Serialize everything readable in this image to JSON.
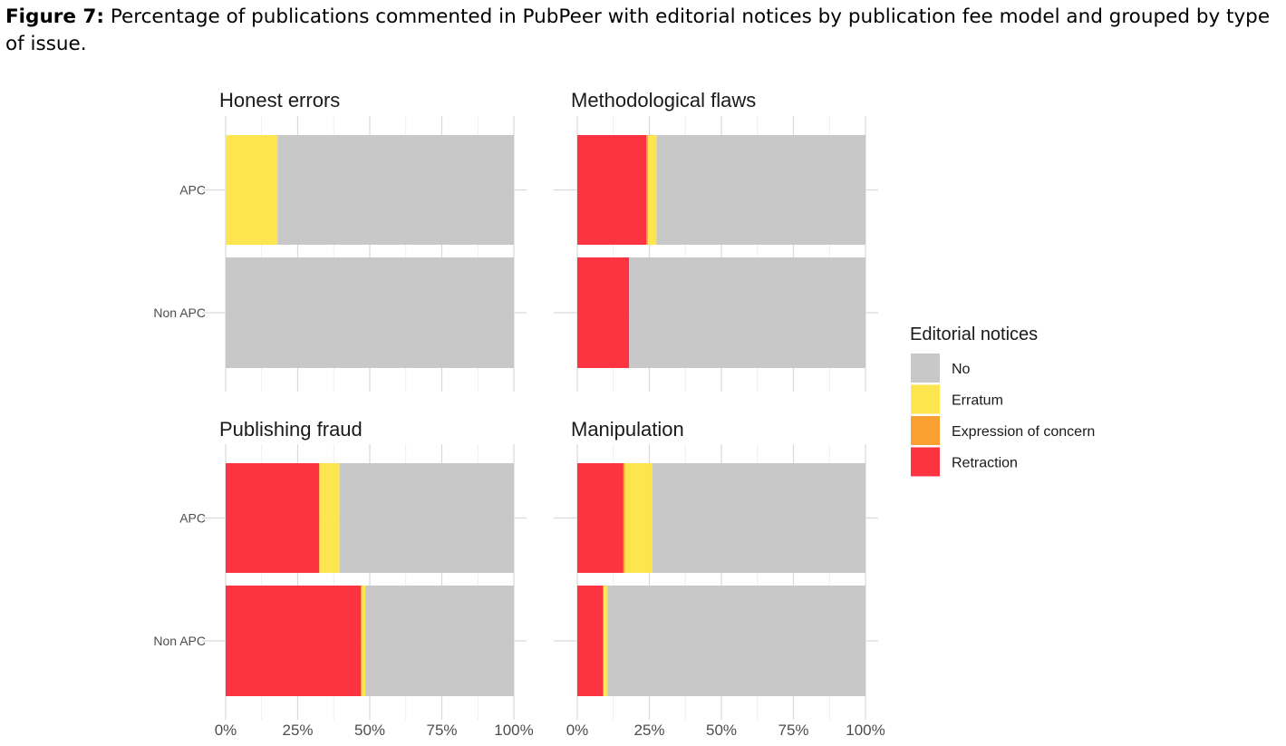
{
  "figure": {
    "label": "Figure 7:",
    "caption": " Percentage of publications commented in PubPeer with editorial notices by publication fee model and grouped by type of issue."
  },
  "chart_data": {
    "type": "bar",
    "orientation": "horizontal",
    "stacked": true,
    "categories": [
      "APC",
      "Non APC"
    ],
    "xlim": [
      0,
      100
    ],
    "x_ticks": [
      "0%",
      "25%",
      "50%",
      "75%",
      "100%"
    ],
    "grid": true,
    "legend": {
      "title": "Editorial notices",
      "placement": "right",
      "entries": [
        "No",
        "Erratum",
        "Expression of concern",
        "Retraction"
      ]
    },
    "colors": {
      "No": "#c8c8c8",
      "Erratum": "#fde54f",
      "Expression of concern": "#f9a030",
      "Retraction": "#fc3340"
    },
    "panels": [
      {
        "title": "Honest errors",
        "series": [
          {
            "name": "Retraction",
            "values": [
              0,
              0
            ]
          },
          {
            "name": "Expression of concern",
            "values": [
              0,
              0
            ]
          },
          {
            "name": "Erratum",
            "values": [
              18,
              0
            ]
          },
          {
            "name": "No",
            "values": [
              82,
              100
            ]
          }
        ]
      },
      {
        "title": "Methodological flaws",
        "series": [
          {
            "name": "Retraction",
            "values": [
              24,
              18
            ]
          },
          {
            "name": "Expression of concern",
            "values": [
              0.5,
              0
            ]
          },
          {
            "name": "Erratum",
            "values": [
              3,
              0
            ]
          },
          {
            "name": "No",
            "values": [
              72.5,
              82
            ]
          }
        ]
      },
      {
        "title": "Publishing fraud",
        "series": [
          {
            "name": "Retraction",
            "values": [
              32.5,
              47
            ]
          },
          {
            "name": "Expression of concern",
            "values": [
              0,
              0
            ]
          },
          {
            "name": "Erratum",
            "values": [
              7,
              1.5
            ]
          },
          {
            "name": "No",
            "values": [
              60.5,
              51.5
            ]
          }
        ]
      },
      {
        "title": "Manipulation",
        "series": [
          {
            "name": "Retraction",
            "values": [
              16,
              9
            ]
          },
          {
            "name": "Expression of concern",
            "values": [
              0.5,
              0
            ]
          },
          {
            "name": "Erratum",
            "values": [
              9.5,
              1.5
            ]
          },
          {
            "name": "No",
            "values": [
              74,
              89.5
            ]
          }
        ]
      }
    ]
  }
}
